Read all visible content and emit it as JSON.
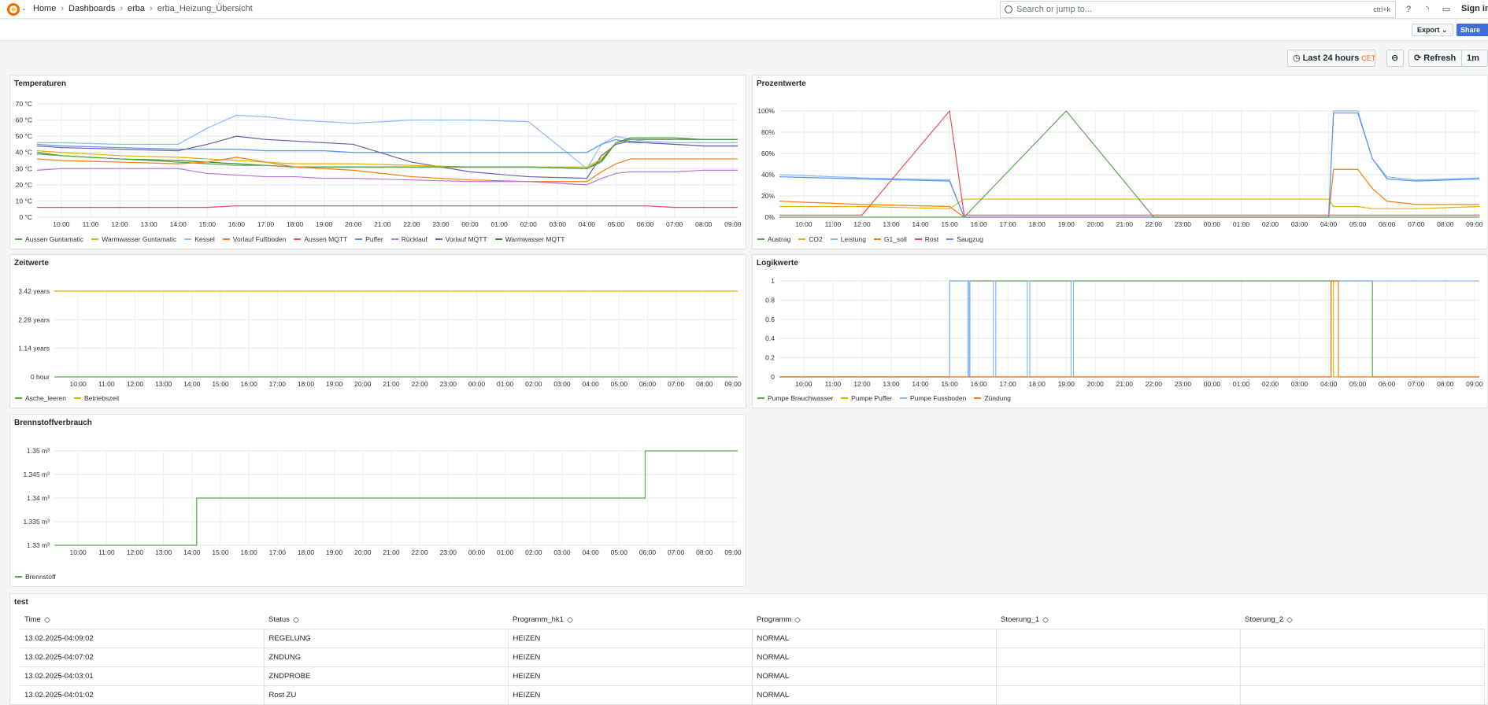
{
  "topbar": {
    "breadcrumb": [
      "Home",
      "Dashboards",
      "erba",
      "erba_Heizung_Übersicht"
    ],
    "search_placeholder": "Search or jump to...",
    "search_shortcut": "ctrl+k",
    "signin": "Sign in"
  },
  "subbar": {
    "export_label": "Export",
    "share_label": "Share"
  },
  "timepicker": {
    "range": "Last 24 hours",
    "tz": "CET",
    "refresh_label": "Refresh",
    "interval": "1m"
  },
  "xticks": [
    "10:00",
    "11:00",
    "12:00",
    "13:00",
    "14:00",
    "15:00",
    "16:00",
    "17:00",
    "18:00",
    "19:00",
    "20:00",
    "21:00",
    "22:00",
    "23:00",
    "00:00",
    "01:00",
    "02:00",
    "03:00",
    "04:00",
    "05:00",
    "06:00",
    "07:00",
    "08:00",
    "09:00"
  ],
  "panels": {
    "temperaturen": {
      "title": "Temperaturen",
      "yticks": [
        "70 °C",
        "60 °C",
        "50 °C",
        "40 °C",
        "30 °C",
        "20 °C",
        "10 °C",
        "0 °C"
      ],
      "legend": [
        {
          "name": "Aussen Guntamatic",
          "color": "#56a64b"
        },
        {
          "name": "Warmwasser Guntamatic",
          "color": "#e0b400"
        },
        {
          "name": "Kessel",
          "color": "#8ab8ff"
        },
        {
          "name": "Vorlauf Fußboden",
          "color": "#ff780a"
        },
        {
          "name": "Aussen MQTT",
          "color": "#f2495c"
        },
        {
          "name": "Puffer",
          "color": "#5794f2"
        },
        {
          "name": "Rücklauf",
          "color": "#b877d9"
        },
        {
          "name": "Vorlauf MQTT",
          "color": "#705da0"
        },
        {
          "name": "Warmwasser MQTT",
          "color": "#37872d"
        }
      ]
    },
    "prozentwerte": {
      "title": "Prozentwerte",
      "yticks": [
        "100%",
        "80%",
        "60%",
        "40%",
        "20%",
        "0%"
      ],
      "legend": [
        {
          "name": "Austrag",
          "color": "#56a64b"
        },
        {
          "name": "CO2",
          "color": "#e0b400"
        },
        {
          "name": "Leistung",
          "color": "#8ab8ff"
        },
        {
          "name": "G1_soll",
          "color": "#ff780a"
        },
        {
          "name": "Rost",
          "color": "#f2495c"
        },
        {
          "name": "Saugzug",
          "color": "#5794f2"
        }
      ]
    },
    "zeitwerte": {
      "title": "Zeitwerte",
      "yticks": [
        "3.42 years",
        "2.28 years",
        "1.14 years",
        "0 hour"
      ],
      "legend": [
        {
          "name": "Asche_leeren",
          "color": "#56a64b"
        },
        {
          "name": "Betriebszeit",
          "color": "#e0b400"
        }
      ]
    },
    "logikwerte": {
      "title": "Logikwerte",
      "yticks": [
        "1",
        "0.8",
        "0.6",
        "0.4",
        "0.2",
        "0"
      ],
      "legend": [
        {
          "name": "Pumpe Brauchwasser",
          "color": "#56a64b"
        },
        {
          "name": "Pumpe Puffer",
          "color": "#e0b400"
        },
        {
          "name": "Pumpe Fussboden",
          "color": "#8ab8ff"
        },
        {
          "name": "Zündung",
          "color": "#ff780a"
        }
      ]
    },
    "brennstoff": {
      "title": "Brennstoffverbrauch",
      "yticks": [
        "1.35 m³",
        "1.345 m³",
        "1.34 m³",
        "1.335 m³",
        "1.33 m³"
      ],
      "legend": [
        {
          "name": "Brennstoff",
          "color": "#56a64b"
        }
      ]
    },
    "test": {
      "title": "test",
      "columns": [
        "Time",
        "Status",
        "Programm_hk1",
        "Programm",
        "Stoerung_1",
        "Stoerung_2"
      ],
      "rows": [
        [
          "13.02.2025-04:09:02",
          "REGELUNG",
          "HEIZEN",
          "NORMAL",
          "",
          ""
        ],
        [
          "13.02.2025-04:07:02",
          "ZNDUNG",
          "HEIZEN",
          "NORMAL",
          "",
          ""
        ],
        [
          "13.02.2025-04:03:01",
          "ZNDPROBE",
          "HEIZEN",
          "NORMAL",
          "",
          ""
        ],
        [
          "13.02.2025-04:01:02",
          "Rost ZU",
          "HEIZEN",
          "NORMAL",
          "",
          ""
        ]
      ]
    }
  },
  "chart_data": [
    {
      "type": "line",
      "title": "Temperaturen",
      "x": [
        "09:10",
        "10:00",
        "12:00",
        "14:00",
        "15:00",
        "16:00",
        "17:00",
        "18:00",
        "19:00",
        "20:00",
        "22:00",
        "00:00",
        "02:00",
        "04:00",
        "04:30",
        "05:00",
        "05:30",
        "06:00",
        "07:00",
        "08:00",
        "09:10"
      ],
      "ylim": [
        0,
        70
      ],
      "series": [
        {
          "name": "Kessel",
          "values": [
            46,
            46,
            45,
            45,
            55,
            63,
            62,
            60,
            59,
            58,
            60,
            60,
            59,
            30,
            45,
            50,
            48,
            47,
            46,
            46,
            46
          ]
        },
        {
          "name": "Puffer",
          "values": [
            45,
            44,
            43,
            42,
            42,
            42,
            41,
            41,
            41,
            40,
            40,
            40,
            40,
            40,
            45,
            48,
            46,
            46,
            45,
            44,
            44
          ]
        },
        {
          "name": "Vorlauf MQTT",
          "values": [
            44,
            43,
            42,
            41,
            45,
            50,
            48,
            47,
            46,
            45,
            34,
            28,
            25,
            24,
            38,
            45,
            47,
            46,
            45,
            44,
            44
          ]
        },
        {
          "name": "Warmwasser Guntamatic",
          "values": [
            41,
            40,
            38,
            37,
            36,
            35,
            34,
            33,
            33,
            33,
            32,
            31,
            31,
            31,
            36,
            46,
            48,
            48,
            48,
            48,
            48
          ]
        },
        {
          "name": "Warmwasser MQTT",
          "values": [
            40,
            38,
            36,
            35,
            34,
            33,
            32,
            31,
            31,
            31,
            31,
            31,
            31,
            30,
            35,
            46,
            49,
            49,
            49,
            48,
            48
          ]
        },
        {
          "name": "Aussen Guntamatic",
          "values": [
            39,
            38,
            36,
            34,
            33,
            32,
            32,
            31,
            31,
            31,
            31,
            31,
            31,
            30,
            34,
            46,
            48,
            48,
            48,
            48,
            48
          ]
        },
        {
          "name": "Vorlauf Fußboden",
          "values": [
            36,
            35,
            34,
            33,
            34,
            37,
            34,
            31,
            30,
            29,
            25,
            23,
            22,
            22,
            28,
            33,
            36,
            36,
            36,
            36,
            36
          ]
        },
        {
          "name": "Rücklauf",
          "values": [
            29,
            30,
            30,
            30,
            27,
            26,
            25,
            25,
            24,
            24,
            23,
            22,
            22,
            20,
            24,
            27,
            28,
            28,
            28,
            29,
            29
          ]
        },
        {
          "name": "Aussen MQTT",
          "values": [
            6,
            6,
            6,
            6,
            6,
            7,
            7,
            7,
            7,
            7,
            7,
            7,
            7,
            7,
            7,
            7,
            7,
            7,
            6,
            6,
            6
          ]
        }
      ]
    },
    {
      "type": "line",
      "title": "Prozentwerte",
      "x": [
        "09:10",
        "12:00",
        "15:00",
        "15:30",
        "19:00",
        "22:00",
        "01:00",
        "04:00",
        "04:10",
        "05:00",
        "05:30",
        "06:00",
        "07:00",
        "09:10"
      ],
      "ylim": [
        0,
        100
      ],
      "series": [
        {
          "name": "Leistung",
          "values": [
            40,
            37,
            35,
            0,
            0,
            0,
            0,
            0,
            100,
            100,
            55,
            38,
            35,
            37
          ]
        },
        {
          "name": "G1_soll",
          "values": [
            15,
            12,
            10,
            0,
            0,
            0,
            0,
            0,
            45,
            45,
            27,
            15,
            12,
            12
          ]
        },
        {
          "name": "CO2",
          "values": [
            10,
            10,
            8,
            17,
            17,
            17,
            17,
            17,
            10,
            10,
            8,
            8,
            8,
            10
          ]
        },
        {
          "name": "Rost",
          "values": [
            2,
            2,
            100,
            2,
            2,
            2,
            2,
            2,
            2,
            2,
            2,
            2,
            2,
            2
          ]
        },
        {
          "name": "Saugzug",
          "values": [
            38,
            36,
            34,
            0,
            0,
            0,
            0,
            0,
            98,
            98,
            55,
            36,
            34,
            36
          ]
        },
        {
          "name": "Austrag",
          "values": [
            0,
            0,
            0,
            0,
            100,
            0,
            0,
            0,
            0,
            0,
            0,
            0,
            0,
            0
          ]
        }
      ]
    },
    {
      "type": "line",
      "title": "Zeitwerte",
      "x": [
        "09:10",
        "09:10"
      ],
      "ylim": [
        0,
        3.42
      ],
      "series": [
        {
          "name": "Betriebszeit",
          "values": [
            3.42,
            3.42
          ]
        },
        {
          "name": "Asche_leeren",
          "values": [
            0,
            0
          ]
        }
      ]
    },
    {
      "type": "line",
      "title": "Logikwerte",
      "ylim": [
        0,
        1
      ],
      "series": [
        {
          "name": "Pumpe Brauchwasser",
          "values": [
            0,
            1,
            1,
            0
          ]
        },
        {
          "name": "Pumpe Puffer",
          "values": [
            0,
            0,
            1,
            0
          ]
        },
        {
          "name": "Pumpe Fussboden",
          "values": [
            0,
            1,
            0,
            1
          ]
        },
        {
          "name": "Zündung",
          "values": [
            0,
            0,
            1,
            0
          ]
        }
      ]
    },
    {
      "type": "line",
      "title": "Brennstoffverbrauch",
      "x": [
        "09:10",
        "14:10",
        "14:10",
        "05:55",
        "05:55",
        "09:10"
      ],
      "ylim": [
        1.33,
        1.35
      ],
      "series": [
        {
          "name": "Brennstoff",
          "values": [
            1.33,
            1.33,
            1.34,
            1.34,
            1.35,
            1.35
          ]
        }
      ]
    }
  ]
}
